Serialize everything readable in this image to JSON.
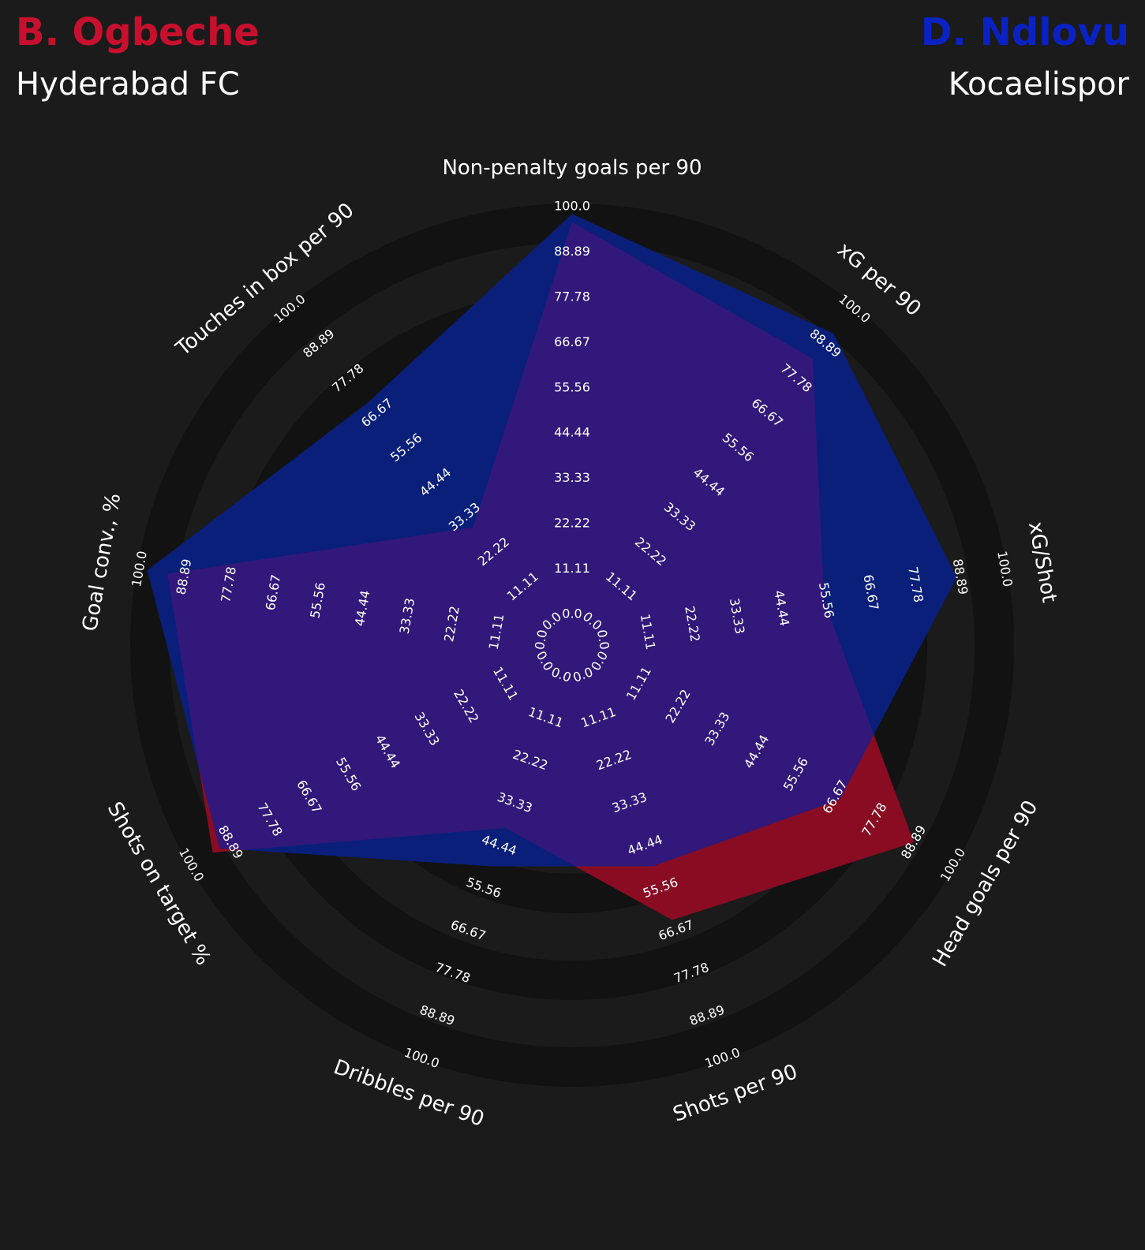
{
  "header": {
    "player1": {
      "name": "B. Ogbeche",
      "team": "Hyderabad FC",
      "color": "#c8102e"
    },
    "player2": {
      "name": "D. Ndlovu",
      "team": "Kocaelispor",
      "color": "#0a22c4"
    }
  },
  "chart_data": {
    "type": "radar",
    "title": "",
    "range": [
      0,
      100
    ],
    "tick_labels": [
      "0.0",
      "11.11",
      "22.22",
      "33.33",
      "44.44",
      "55.56",
      "66.67",
      "77.78",
      "88.89",
      "100.0"
    ],
    "axes": [
      "Non-penalty goals per 90",
      "xG per 90",
      "xG/Shot",
      "Head goals per 90",
      "Shots per 90",
      "Dribbles per 90",
      "Shots on target %",
      "Goal conv., %",
      "Touches in box per 90"
    ],
    "series": [
      {
        "name": "B. Ogbeche",
        "color": "#8a0c22",
        "values": [
          96,
          84,
          55,
          89,
          64,
          40,
          94,
          93,
          30
        ]
      },
      {
        "name": "D. Ndlovu",
        "color": "#0a1f7a",
        "values": [
          98,
          92,
          88,
          68,
          50,
          50,
          92,
          98,
          70
        ]
      }
    ],
    "overlap_color": "#32187a",
    "ring_colors": [
      "#1b1b1b",
      "#121212"
    ],
    "grid": false,
    "legend": "none"
  }
}
